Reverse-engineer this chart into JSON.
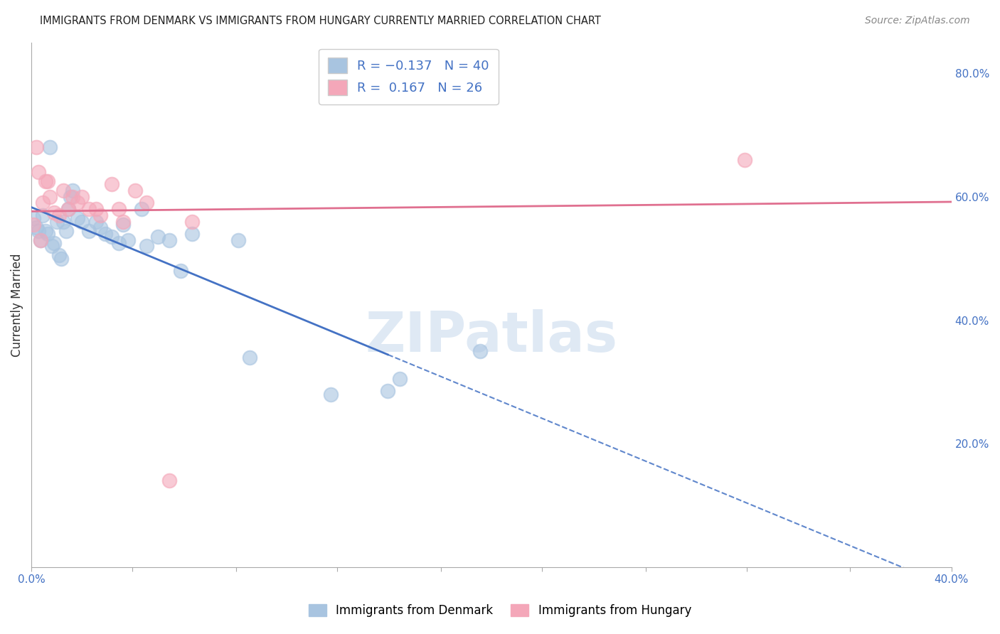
{
  "title": "IMMIGRANTS FROM DENMARK VS IMMIGRANTS FROM HUNGARY CURRENTLY MARRIED CORRELATION CHART",
  "source": "Source: ZipAtlas.com",
  "ylabel": "Currently Married",
  "xlim": [
    0.0,
    0.4
  ],
  "ylim": [
    0.0,
    0.85
  ],
  "xtick_labels": [
    "0.0%",
    "",
    "",
    "",
    "",
    "",
    "",
    "",
    "",
    "40.0%"
  ],
  "xtick_vals": [
    0.0,
    0.044,
    0.089,
    0.133,
    0.178,
    0.222,
    0.267,
    0.311,
    0.356,
    0.4
  ],
  "ytick_labels": [
    "20.0%",
    "40.0%",
    "60.0%",
    "80.0%"
  ],
  "ytick_vals": [
    0.2,
    0.4,
    0.6,
    0.8
  ],
  "denmark_color": "#a8c4e0",
  "hungary_color": "#f4a7b9",
  "denmark_line_color": "#4472c4",
  "hungary_line_color": "#e07090",
  "watermark": "ZIPatlas",
  "denmark_x": [
    0.001,
    0.002,
    0.003,
    0.004,
    0.005,
    0.006,
    0.007,
    0.008,
    0.009,
    0.01,
    0.011,
    0.012,
    0.013,
    0.014,
    0.015,
    0.016,
    0.017,
    0.018,
    0.02,
    0.022,
    0.025,
    0.028,
    0.03,
    0.032,
    0.035,
    0.038,
    0.04,
    0.042,
    0.048,
    0.05,
    0.055,
    0.06,
    0.065,
    0.07,
    0.09,
    0.095,
    0.13,
    0.155,
    0.16,
    0.195
  ],
  "denmark_y": [
    0.565,
    0.55,
    0.545,
    0.53,
    0.57,
    0.545,
    0.54,
    0.68,
    0.52,
    0.525,
    0.56,
    0.505,
    0.5,
    0.56,
    0.545,
    0.58,
    0.6,
    0.61,
    0.565,
    0.56,
    0.545,
    0.56,
    0.55,
    0.54,
    0.535,
    0.525,
    0.555,
    0.53,
    0.58,
    0.52,
    0.535,
    0.53,
    0.48,
    0.54,
    0.53,
    0.34,
    0.28,
    0.285,
    0.305,
    0.35
  ],
  "hungary_x": [
    0.001,
    0.002,
    0.003,
    0.004,
    0.005,
    0.006,
    0.007,
    0.008,
    0.01,
    0.012,
    0.014,
    0.016,
    0.018,
    0.02,
    0.022,
    0.025,
    0.028,
    0.03,
    0.035,
    0.038,
    0.04,
    0.045,
    0.05,
    0.06,
    0.07,
    0.31
  ],
  "hungary_y": [
    0.555,
    0.68,
    0.64,
    0.53,
    0.59,
    0.625,
    0.625,
    0.6,
    0.575,
    0.57,
    0.61,
    0.58,
    0.6,
    0.59,
    0.6,
    0.58,
    0.58,
    0.57,
    0.62,
    0.58,
    0.56,
    0.61,
    0.59,
    0.14,
    0.56,
    0.66
  ],
  "background_color": "#ffffff",
  "grid_color": "#cccccc",
  "dk_line_solid_end": 0.155,
  "dk_line_dash_start": 0.155,
  "dk_line_end": 0.4
}
